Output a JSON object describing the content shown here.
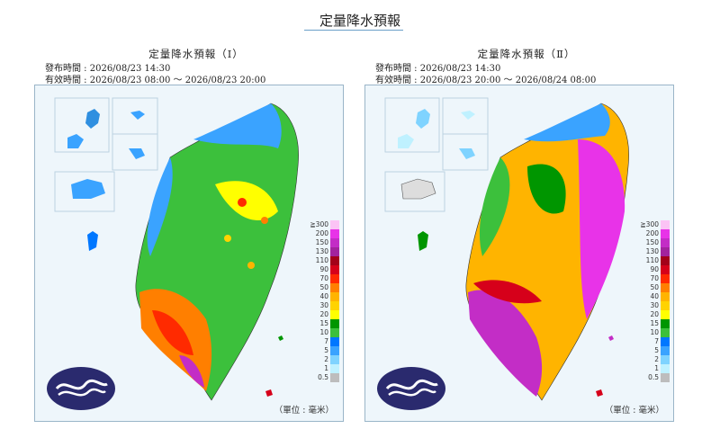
{
  "page_title": "定量降水預報",
  "panels": [
    {
      "title": "定量降水預報（Ⅰ）",
      "issued": "發布時間 : 2026/08/23 14:30",
      "valid": "有效時間 : 2026/08/23 08:00 ～ 2026/08/23 20:00",
      "unit": "（單位 : 毫米）"
    },
    {
      "title": "定量降水預報（Ⅱ）",
      "issued": "發布時間 : 2026/08/23 14:30",
      "valid": "有效時間 : 2026/08/23 20:00 ～ 2026/08/24 08:00",
      "unit": "（單位 : 毫米）"
    }
  ],
  "legend": {
    "levels": [
      {
        "label": "≧300",
        "color": "#fbc3f5"
      },
      {
        "label": "200",
        "color": "#e833e8"
      },
      {
        "label": "150",
        "color": "#c32dc6"
      },
      {
        "label": "130",
        "color": "#a2239e"
      },
      {
        "label": "110",
        "color": "#a3001a"
      },
      {
        "label": "90",
        "color": "#d6001a"
      },
      {
        "label": "70",
        "color": "#ff2a00"
      },
      {
        "label": "50",
        "color": "#ff7f00"
      },
      {
        "label": "40",
        "color": "#ffb400"
      },
      {
        "label": "30",
        "color": "#ffd300"
      },
      {
        "label": "20",
        "color": "#ffff00"
      },
      {
        "label": "15",
        "color": "#009600"
      },
      {
        "label": "10",
        "color": "#3cc03c"
      },
      {
        "label": "7",
        "color": "#0077ff"
      },
      {
        "label": "5",
        "color": "#3aa3ff"
      },
      {
        "label": "2",
        "color": "#7fd3ff"
      },
      {
        "label": "1",
        "color": "#bff1ff"
      },
      {
        "label": "0.5",
        "color": "#bdbdbd"
      }
    ]
  },
  "colors": {
    "ocean": "#eef6fb",
    "frame": "#9ab5c8",
    "logo_bg": "#2a2a6e"
  }
}
